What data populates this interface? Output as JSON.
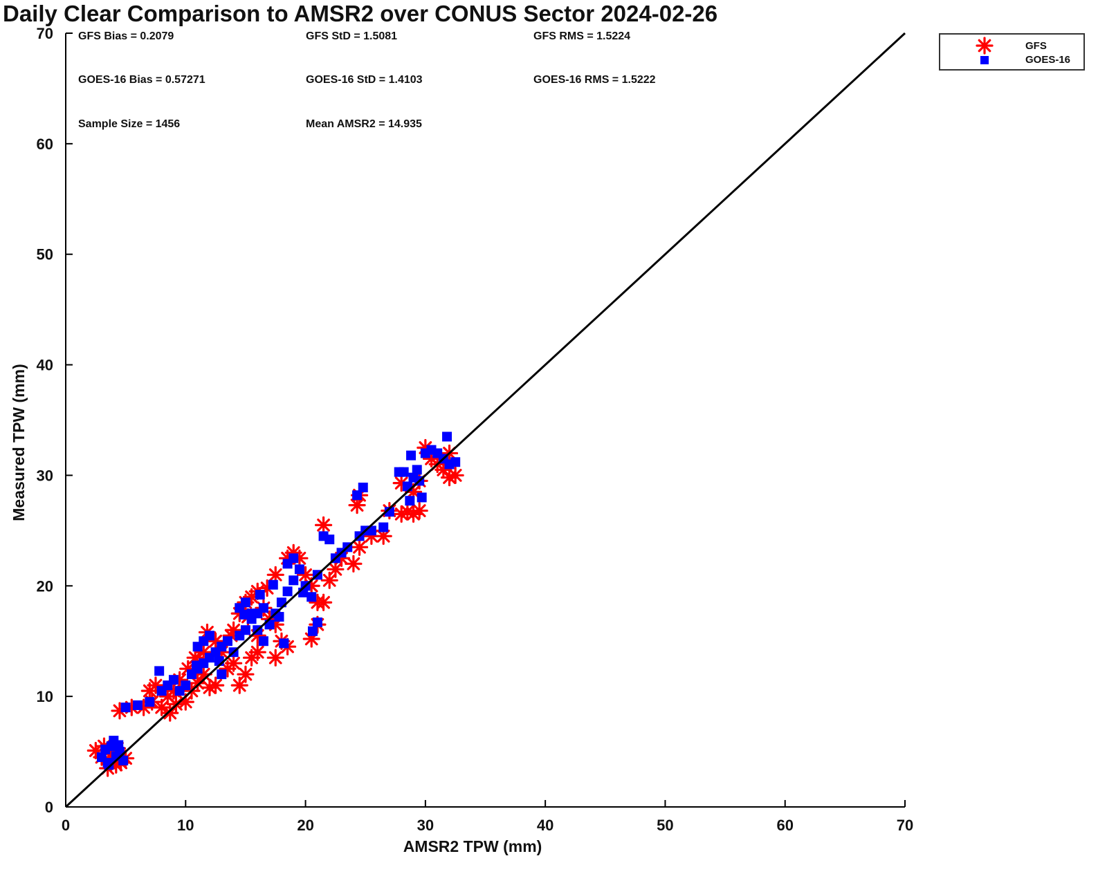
{
  "chart_data": {
    "type": "scatter",
    "title": "Daily Clear Comparison to AMSR2 over CONUS Sector 2024-02-26",
    "xlabel": "AMSR2 TPW (mm)",
    "ylabel": "Measured TPW (mm)",
    "xlim": [
      0,
      70
    ],
    "ylim": [
      0,
      70
    ],
    "xticks": [
      "0",
      "10",
      "20",
      "30",
      "40",
      "50",
      "60",
      "70"
    ],
    "yticks": [
      "0",
      "10",
      "20",
      "30",
      "40",
      "50",
      "60",
      "70"
    ],
    "grid": false,
    "legend_position": "outside-top-right",
    "reference_line": {
      "name": "1:1 line",
      "from": [
        0,
        0
      ],
      "to": [
        70,
        70
      ]
    },
    "stats": {
      "gfs_bias": "GFS Bias = 0.2079",
      "gfs_std": "GFS StD = 1.5081",
      "gfs_rms": "GFS RMS = 1.5224",
      "goes_bias": "GOES-16 Bias = 0.57271",
      "goes_std": "GOES-16 StD = 1.4103",
      "goes_rms": "GOES-16 RMS = 1.5222",
      "sample_size": "Sample Size = 1456",
      "mean_amsr2": "Mean AMSR2 = 14.935"
    },
    "series": [
      {
        "name": "GFS",
        "marker": "asterisk",
        "color": "#ff0000",
        "points": [
          [
            2.5,
            5.1
          ],
          [
            3.2,
            5.5
          ],
          [
            3.5,
            3.5
          ],
          [
            4.0,
            4.2
          ],
          [
            3.8,
            4.8
          ],
          [
            4.3,
            5.3
          ],
          [
            4.6,
            4.0
          ],
          [
            5.0,
            4.4
          ],
          [
            3.0,
            4.5
          ],
          [
            4.2,
            3.8
          ],
          [
            4.5,
            8.7
          ],
          [
            5.5,
            9.0
          ],
          [
            6.5,
            9.0
          ],
          [
            7.2,
            9.5
          ],
          [
            8.0,
            9.0
          ],
          [
            8.7,
            8.5
          ],
          [
            9.2,
            9.3
          ],
          [
            10.0,
            9.5
          ],
          [
            7.0,
            10.5
          ],
          [
            7.5,
            11.0
          ],
          [
            8.5,
            10.0
          ],
          [
            9.0,
            10.5
          ],
          [
            9.5,
            11.5
          ],
          [
            10.5,
            10.5
          ],
          [
            11.0,
            11.2
          ],
          [
            11.5,
            12.0
          ],
          [
            12.0,
            10.8
          ],
          [
            12.5,
            11.0
          ],
          [
            10.2,
            12.5
          ],
          [
            10.8,
            13.5
          ],
          [
            11.5,
            14.0
          ],
          [
            11.8,
            15.8
          ],
          [
            12.5,
            15.0
          ],
          [
            13.0,
            14.0
          ],
          [
            13.5,
            12.5
          ],
          [
            14.0,
            13.0
          ],
          [
            14.5,
            11.0
          ],
          [
            15.0,
            12.0
          ],
          [
            15.5,
            13.5
          ],
          [
            16.0,
            14.0
          ],
          [
            14.0,
            16.0
          ],
          [
            14.5,
            17.5
          ],
          [
            15.0,
            18.5
          ],
          [
            15.5,
            19.0
          ],
          [
            16.0,
            19.5
          ],
          [
            16.5,
            18.0
          ],
          [
            17.0,
            17.0
          ],
          [
            17.5,
            16.5
          ],
          [
            16.0,
            15.5
          ],
          [
            17.5,
            13.5
          ],
          [
            18.0,
            15.0
          ],
          [
            18.5,
            14.5
          ],
          [
            17.5,
            21.0
          ],
          [
            18.5,
            22.5
          ],
          [
            19.0,
            23.0
          ],
          [
            19.5,
            22.5
          ],
          [
            20.0,
            21.0
          ],
          [
            20.5,
            20.0
          ],
          [
            21.0,
            18.5
          ],
          [
            20.5,
            15.2
          ],
          [
            21.0,
            16.5
          ],
          [
            21.5,
            18.5
          ],
          [
            22.0,
            20.5
          ],
          [
            22.5,
            21.5
          ],
          [
            23.0,
            22.5
          ],
          [
            21.5,
            25.5
          ],
          [
            24.0,
            22.0
          ],
          [
            24.5,
            23.5
          ],
          [
            24.3,
            27.3
          ],
          [
            24.5,
            28.2
          ],
          [
            25.5,
            24.5
          ],
          [
            26.5,
            24.5
          ],
          [
            27.0,
            26.8
          ],
          [
            28.0,
            26.5
          ],
          [
            28.5,
            26.7
          ],
          [
            29.0,
            26.5
          ],
          [
            29.5,
            26.8
          ],
          [
            28.0,
            29.3
          ],
          [
            29.0,
            28.5
          ],
          [
            29.5,
            29.5
          ],
          [
            30.0,
            32.5
          ],
          [
            30.5,
            31.5
          ],
          [
            31.0,
            31.0
          ],
          [
            31.5,
            30.5
          ],
          [
            32.0,
            32.0
          ],
          [
            32.5,
            30.0
          ],
          [
            32.0,
            29.8
          ],
          [
            16.8,
            19.8
          ],
          [
            15.2,
            17.2
          ],
          [
            13.8,
            15.5
          ]
        ]
      },
      {
        "name": "GOES-16",
        "marker": "square",
        "color": "#0000ff",
        "points": [
          [
            3.0,
            4.5
          ],
          [
            3.5,
            4.0
          ],
          [
            3.8,
            5.5
          ],
          [
            4.0,
            6.0
          ],
          [
            4.5,
            5.0
          ],
          [
            3.6,
            3.8
          ],
          [
            4.2,
            4.6
          ],
          [
            4.8,
            4.2
          ],
          [
            3.3,
            5.2
          ],
          [
            4.4,
            5.6
          ],
          [
            5.0,
            9.0
          ],
          [
            6.0,
            9.2
          ],
          [
            7.0,
            9.5
          ],
          [
            7.8,
            12.3
          ],
          [
            8.0,
            10.5
          ],
          [
            8.5,
            11.0
          ],
          [
            9.0,
            11.5
          ],
          [
            9.5,
            10.5
          ],
          [
            10.0,
            11.0
          ],
          [
            10.5,
            12.0
          ],
          [
            11.0,
            12.5
          ],
          [
            11.5,
            13.0
          ],
          [
            12.0,
            13.5
          ],
          [
            12.5,
            14.0
          ],
          [
            13.0,
            14.5
          ],
          [
            13.5,
            15.0
          ],
          [
            11.0,
            14.5
          ],
          [
            11.5,
            15.0
          ],
          [
            12.0,
            15.5
          ],
          [
            13.0,
            12.0
          ],
          [
            14.0,
            14.0
          ],
          [
            14.5,
            15.5
          ],
          [
            15.0,
            16.0
          ],
          [
            15.5,
            17.0
          ],
          [
            16.0,
            17.5
          ],
          [
            16.5,
            18.0
          ],
          [
            14.5,
            18.0
          ],
          [
            15.0,
            18.5
          ],
          [
            15.5,
            17.5
          ],
          [
            16.0,
            16.0
          ],
          [
            16.5,
            15.0
          ],
          [
            17.0,
            16.5
          ],
          [
            17.5,
            17.5
          ],
          [
            18.0,
            18.5
          ],
          [
            18.5,
            19.5
          ],
          [
            19.0,
            20.5
          ],
          [
            19.5,
            21.5
          ],
          [
            18.5,
            22.0
          ],
          [
            19.0,
            22.5
          ],
          [
            20.0,
            20.0
          ],
          [
            20.5,
            19.0
          ],
          [
            21.0,
            21.0
          ],
          [
            21.5,
            24.5
          ],
          [
            22.0,
            24.2
          ],
          [
            22.5,
            22.5
          ],
          [
            23.0,
            23.0
          ],
          [
            23.5,
            23.5
          ],
          [
            24.5,
            24.5
          ],
          [
            24.3,
            28.2
          ],
          [
            24.8,
            28.9
          ],
          [
            25.0,
            25.0
          ],
          [
            25.5,
            25.0
          ],
          [
            26.5,
            25.3
          ],
          [
            27.0,
            26.7
          ],
          [
            27.8,
            30.3
          ],
          [
            28.2,
            30.3
          ],
          [
            28.5,
            29.0
          ],
          [
            28.7,
            27.7
          ],
          [
            28.8,
            31.8
          ],
          [
            29.0,
            29.8
          ],
          [
            29.3,
            30.5
          ],
          [
            29.5,
            29.5
          ],
          [
            29.7,
            28.0
          ],
          [
            30.0,
            32.0
          ],
          [
            30.5,
            32.3
          ],
          [
            31.0,
            32.0
          ],
          [
            31.5,
            31.5
          ],
          [
            31.8,
            33.5
          ],
          [
            32.0,
            31.0
          ],
          [
            32.5,
            31.2
          ],
          [
            21.0,
            16.7
          ],
          [
            20.6,
            15.9
          ],
          [
            17.8,
            17.2
          ],
          [
            16.2,
            19.2
          ],
          [
            18.2,
            14.8
          ],
          [
            19.8,
            19.4
          ],
          [
            12.8,
            13.2
          ],
          [
            14.9,
            17.4
          ],
          [
            17.3,
            20.1
          ],
          [
            10.9,
            12.8
          ]
        ]
      }
    ]
  }
}
